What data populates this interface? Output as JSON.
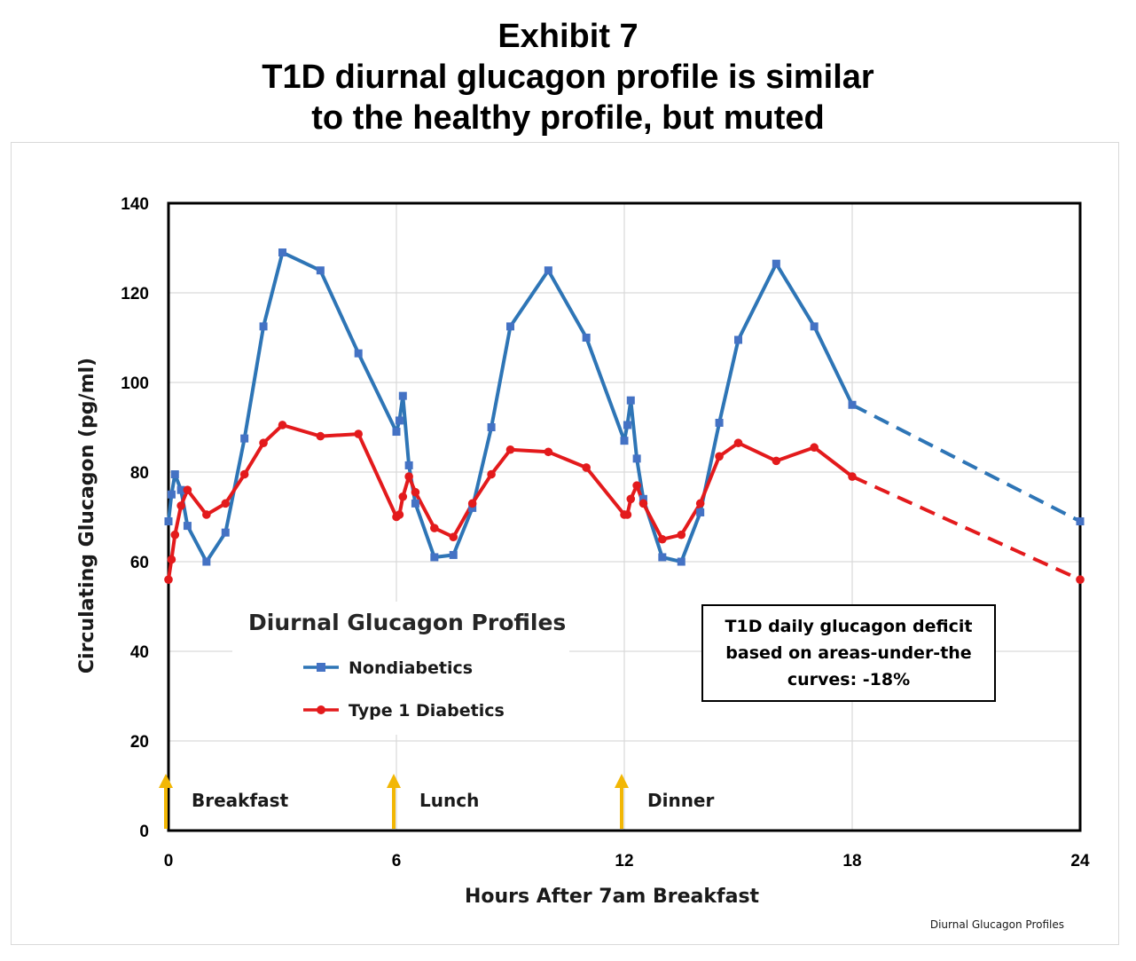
{
  "chart_data": {
    "type": "line",
    "title": [
      "Exhibit 7",
      "T1D diurnal glucagon profile is similar",
      "to the healthy profile, but muted"
    ],
    "xlabel": "Hours After 7am Breakfast",
    "ylabel": "Circulating Glucagon (pg/ml)",
    "xlim": [
      0,
      24
    ],
    "ylim": [
      0,
      140
    ],
    "xticks": [
      0,
      6,
      12,
      18,
      24
    ],
    "yticks": [
      0,
      20,
      40,
      60,
      80,
      100,
      120,
      140
    ],
    "grid": true,
    "legend": {
      "title": "Diurnal Glucagon Profiles",
      "position": "lower-left"
    },
    "series": [
      {
        "name": "Nondiabetics",
        "color": "#2e75b6",
        "marker": "square",
        "points": [
          [
            0,
            69
          ],
          [
            0.08,
            75
          ],
          [
            0.17,
            79.5
          ],
          [
            0.33,
            76
          ],
          [
            0.5,
            68
          ],
          [
            1.0,
            60
          ],
          [
            1.5,
            66.5
          ],
          [
            2.0,
            87.5
          ],
          [
            2.5,
            112.5
          ],
          [
            3.0,
            129
          ],
          [
            4.0,
            125
          ],
          [
            5.0,
            106.5
          ],
          [
            6.0,
            89
          ],
          [
            6.08,
            91.5
          ],
          [
            6.17,
            97
          ],
          [
            6.33,
            81.5
          ],
          [
            6.5,
            73
          ],
          [
            7.0,
            61
          ],
          [
            7.5,
            61.5
          ],
          [
            8.0,
            72
          ],
          [
            8.5,
            90
          ],
          [
            9.0,
            112.5
          ],
          [
            10.0,
            125
          ],
          [
            11.0,
            110
          ],
          [
            12.0,
            87
          ],
          [
            12.08,
            90.5
          ],
          [
            12.17,
            96
          ],
          [
            12.33,
            83
          ],
          [
            12.5,
            74
          ],
          [
            13.0,
            61
          ],
          [
            13.5,
            60
          ],
          [
            14.0,
            71
          ],
          [
            14.5,
            91
          ],
          [
            15.0,
            109.5
          ],
          [
            16.0,
            126.5
          ],
          [
            17.0,
            112.5
          ],
          [
            18.0,
            95
          ]
        ],
        "projection": [
          [
            18.0,
            95
          ],
          [
            24.0,
            69
          ]
        ]
      },
      {
        "name": "Type 1 Diabetics",
        "color": "#e31a1c",
        "marker": "circle",
        "points": [
          [
            0,
            56
          ],
          [
            0.08,
            60.5
          ],
          [
            0.17,
            66
          ],
          [
            0.33,
            72.5
          ],
          [
            0.5,
            76
          ],
          [
            1.0,
            70.5
          ],
          [
            1.5,
            73
          ],
          [
            2.0,
            79.5
          ],
          [
            2.5,
            86.5
          ],
          [
            3.0,
            90.5
          ],
          [
            4.0,
            88
          ],
          [
            5.0,
            88.5
          ],
          [
            6.0,
            70
          ],
          [
            6.08,
            70.5
          ],
          [
            6.17,
            74.5
          ],
          [
            6.33,
            79
          ],
          [
            6.5,
            75.5
          ],
          [
            7.0,
            67.5
          ],
          [
            7.5,
            65.5
          ],
          [
            8.0,
            73
          ],
          [
            8.5,
            79.5
          ],
          [
            9.0,
            85
          ],
          [
            10.0,
            84.5
          ],
          [
            11.0,
            81
          ],
          [
            12.0,
            70.5
          ],
          [
            12.08,
            70.5
          ],
          [
            12.17,
            74
          ],
          [
            12.33,
            77
          ],
          [
            12.5,
            73
          ],
          [
            13.0,
            65
          ],
          [
            13.5,
            66
          ],
          [
            14.0,
            73
          ],
          [
            14.5,
            83.5
          ],
          [
            15.0,
            86.5
          ],
          [
            16.0,
            82.5
          ],
          [
            17.0,
            85.5
          ],
          [
            18.0,
            79
          ]
        ],
        "projection": [
          [
            18.0,
            79
          ],
          [
            24.0,
            56
          ]
        ]
      }
    ],
    "meals": [
      {
        "label": "Breakfast",
        "hour": 0
      },
      {
        "label": "Lunch",
        "hour": 6
      },
      {
        "label": "Dinner",
        "hour": 12
      }
    ],
    "annotation": [
      "T1D daily glucagon deficit",
      "based on areas-under-the",
      "curves:  -18%"
    ],
    "source_label": "Diurnal Glucagon Profiles",
    "colors": {
      "arrow": "#f2b705",
      "grid": "#d9d9d9"
    }
  }
}
